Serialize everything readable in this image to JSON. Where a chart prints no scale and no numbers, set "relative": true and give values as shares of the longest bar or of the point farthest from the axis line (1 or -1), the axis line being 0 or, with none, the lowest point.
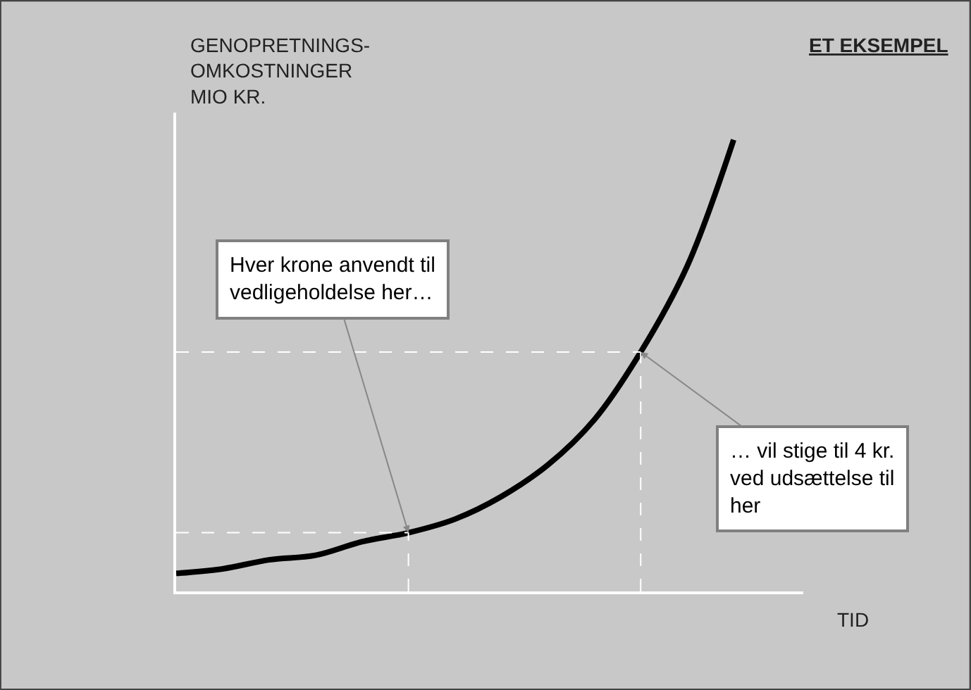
{
  "chart_data": {
    "type": "line",
    "relative": true,
    "title": "ET EKSEMPEL",
    "ylabel": "GENOPRETNINGS-\nOMKOSTNINGER\nMIO KR.",
    "xlabel": "TID",
    "categories": [
      null,
      null,
      null,
      null,
      null,
      null,
      null,
      null,
      null,
      null,
      null,
      null,
      null
    ],
    "series": [
      {
        "color": "#000000",
        "values": [
          0.04,
          0.05,
          0.07,
          0.08,
          0.11,
          0.13,
          0.16,
          0.21,
          0.28,
          0.38,
          0.53,
          0.72,
          1.0
        ]
      }
    ],
    "annotations": [
      "Hver krone anvendt til\nvedligeholdelse her…",
      "… vil stige til 4 kr.\nved udsættelse til\nher"
    ],
    "legend": false,
    "marker": "none",
    "line_style": "solid"
  }
}
